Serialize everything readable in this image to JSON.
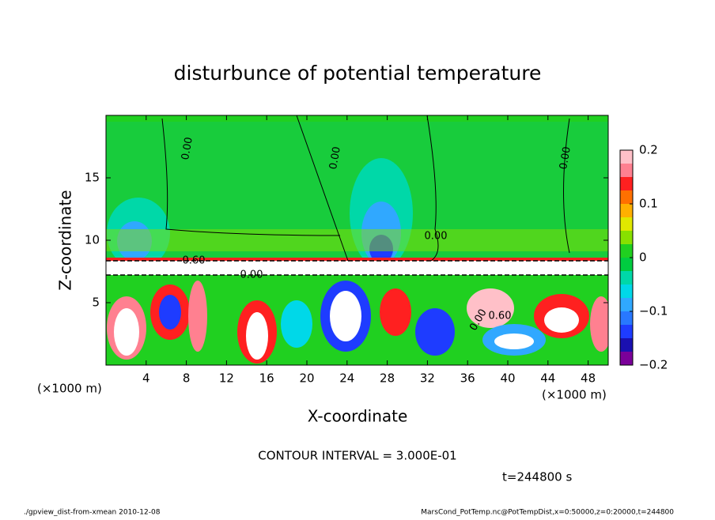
{
  "chart_data": {
    "type": "contour",
    "title": "disturbunce of potential temperature",
    "x_label": "X-coordinate",
    "y_label": "Z-coordinate",
    "x_unit_left": "(×1000 m)",
    "x_unit_right": "(×1000 m)",
    "xlim": [
      0,
      50
    ],
    "xticks": [
      4,
      8,
      12,
      16,
      20,
      24,
      28,
      32,
      36,
      40,
      44,
      48
    ],
    "ylim": [
      0,
      20
    ],
    "yticks": [
      5,
      10,
      15
    ],
    "colorbar": {
      "lim": [
        -0.2,
        0.2
      ],
      "ticks": [
        {
          "value": 0.2,
          "label": "0.2"
        },
        {
          "value": 0.1,
          "label": "0.1"
        },
        0,
        {
          "value": -0.1,
          "label": "−0.1"
        },
        {
          "value": -0.2,
          "label": "−0.2"
        }
      ],
      "colors": [
        "#7a0099",
        "#1a10b0",
        "#1e3cff",
        "#2878ff",
        "#30a8ff",
        "#00d8e8",
        "#00d8a8",
        "#00cc40",
        "#20d020",
        "#88e000",
        "#e0e800",
        "#ffb000",
        "#ff7000",
        "#ff2020",
        "#ff8090",
        "#ffc0c8"
      ]
    },
    "contour_labels": [
      "0.00",
      "0.00",
      "0.00",
      "0.00",
      "0.00",
      "0.00",
      "0.60",
      "0.60"
    ],
    "contour_interval": "CONTOUR INTERVAL = 3.000E-01",
    "time_label": "t=244800 s",
    "footer_left": "./gpview_dist-from-xmean  2010-12-08",
    "footer_right": "MarsCond_PotTemp.nc@PotTempDist,x=0:50000,z=0:20000,t=244800"
  }
}
